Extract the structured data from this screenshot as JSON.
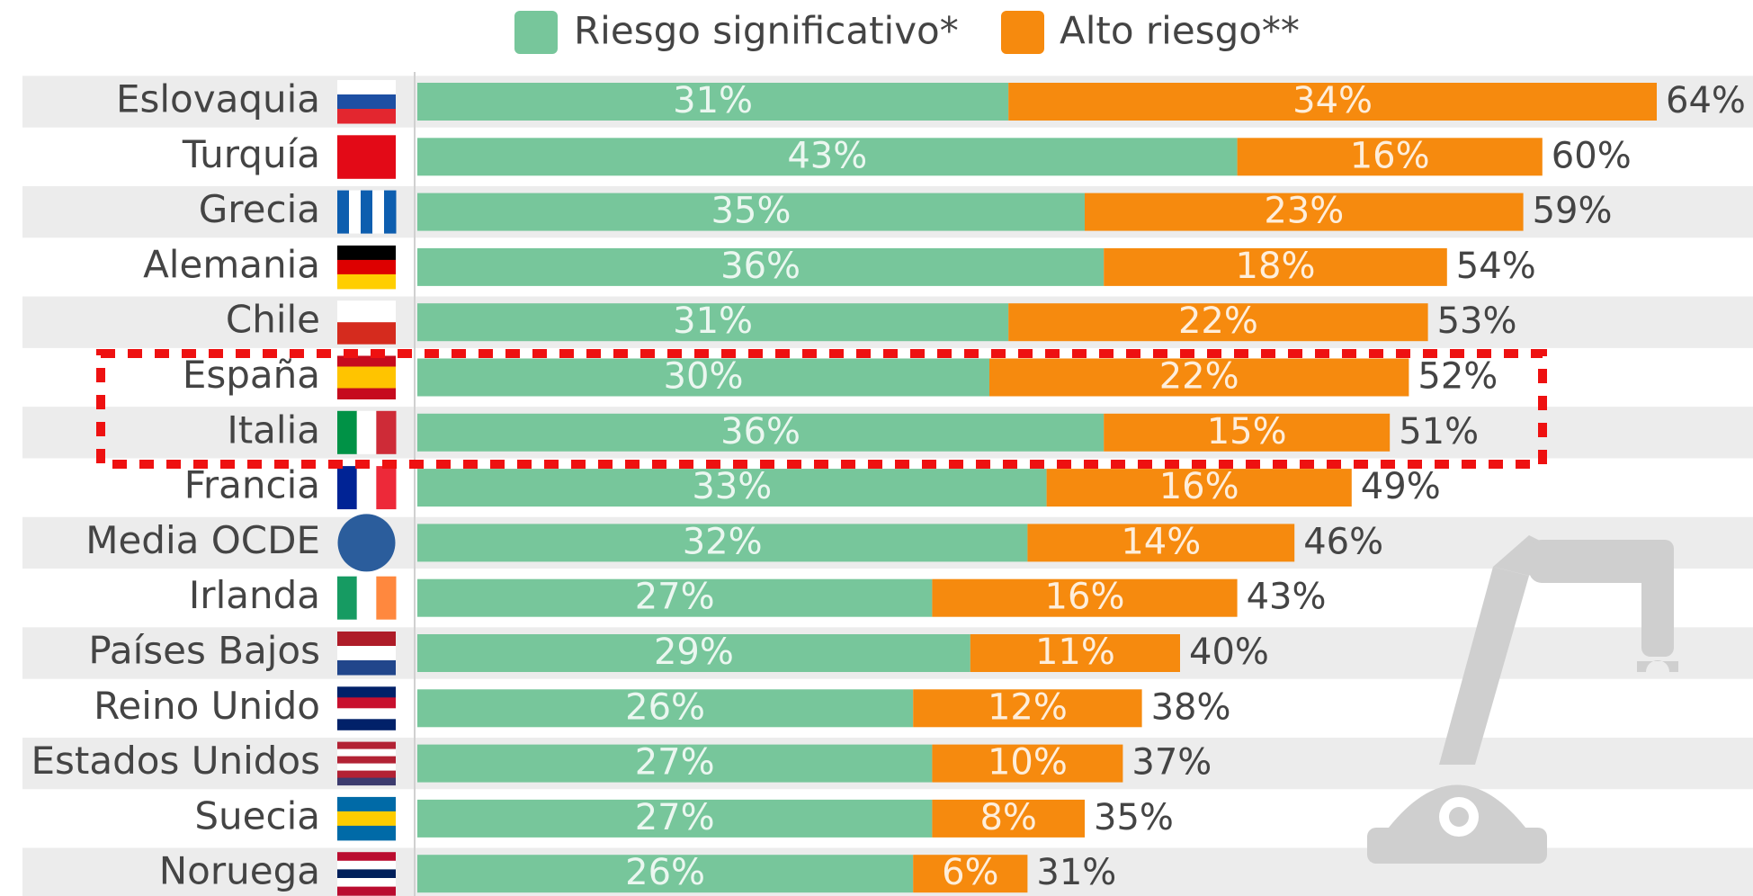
{
  "chart_data": {
    "type": "stacked-bar-horizontal",
    "categories": [
      "Eslovaquia",
      "Turquía",
      "Grecia",
      "Alemania",
      "Chile",
      "España",
      "Italia",
      "Francia",
      "Media OCDE",
      "Irlanda",
      "Países Bajos",
      "Reino Unido",
      "Estados Unidos",
      "Suecia",
      "Noruega"
    ],
    "series": [
      {
        "name": "Riesgo significativo*",
        "color": "#77c69b",
        "values": [
          31,
          43,
          35,
          36,
          31,
          30,
          36,
          33,
          32,
          27,
          29,
          26,
          27,
          27,
          26
        ],
        "value_labels": [
          "31%",
          "43%",
          "35%",
          "36%",
          "31%",
          "30%",
          "36%",
          "33%",
          "32%",
          "27%",
          "29%",
          "26%",
          "27%",
          "27%",
          "26%"
        ]
      },
      {
        "name": "Alto riesgo**",
        "color": "#f68a0e",
        "values": [
          34,
          16,
          23,
          18,
          22,
          22,
          15,
          16,
          14,
          16,
          11,
          12,
          10,
          8,
          6
        ],
        "value_labels": [
          "34%",
          "16%",
          "23%",
          "18%",
          "22%",
          "22%",
          "15%",
          "16%",
          "14%",
          "16%",
          "11%",
          "12%",
          "10%",
          "8%",
          "6%"
        ]
      }
    ],
    "totals": {
      "values": [
        64,
        60,
        59,
        54,
        53,
        52,
        51,
        49,
        46,
        43,
        40,
        38,
        37,
        35,
        31
      ],
      "value_labels": [
        "64%",
        "60%",
        "59%",
        "54%",
        "53%",
        "52%",
        "51%",
        "49%",
        "46%",
        "43%",
        "40%",
        "38%",
        "37%",
        "35%",
        "31%"
      ]
    },
    "xlim": [
      0,
      70
    ]
  }
}
